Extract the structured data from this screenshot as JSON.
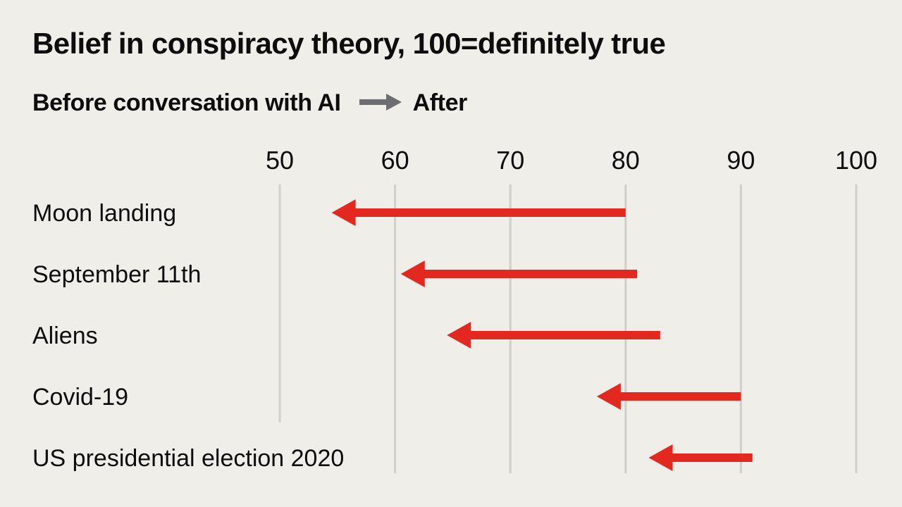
{
  "colors": {
    "background": "#f0eee9",
    "arrow": "#e3281f",
    "legend_arrow": "#6d6e71",
    "gridline": "#d1cfcb",
    "text": "#0d0d0d"
  },
  "chart_data": {
    "type": "arrow",
    "title": "Belief in conspiracy theory, 100=definitely true",
    "legend": {
      "before_label": "Before conversation with AI",
      "after_label": "After",
      "icon": "arrow-right-icon"
    },
    "xlim": [
      50,
      100
    ],
    "xticks": [
      "50",
      "60",
      "70",
      "80",
      "90",
      "100"
    ],
    "xtick_values": [
      50,
      60,
      70,
      80,
      90,
      100
    ],
    "grid": true,
    "categories": [
      "Moon landing",
      "September 11th",
      "Aliens",
      "Covid-19",
      "US presidential election 2020"
    ],
    "series": [
      {
        "name": "Before conversation with AI",
        "values": [
          80,
          81,
          83,
          90,
          91
        ]
      },
      {
        "name": "After",
        "values": [
          54.5,
          60.5,
          64.5,
          77.5,
          82
        ]
      }
    ]
  }
}
